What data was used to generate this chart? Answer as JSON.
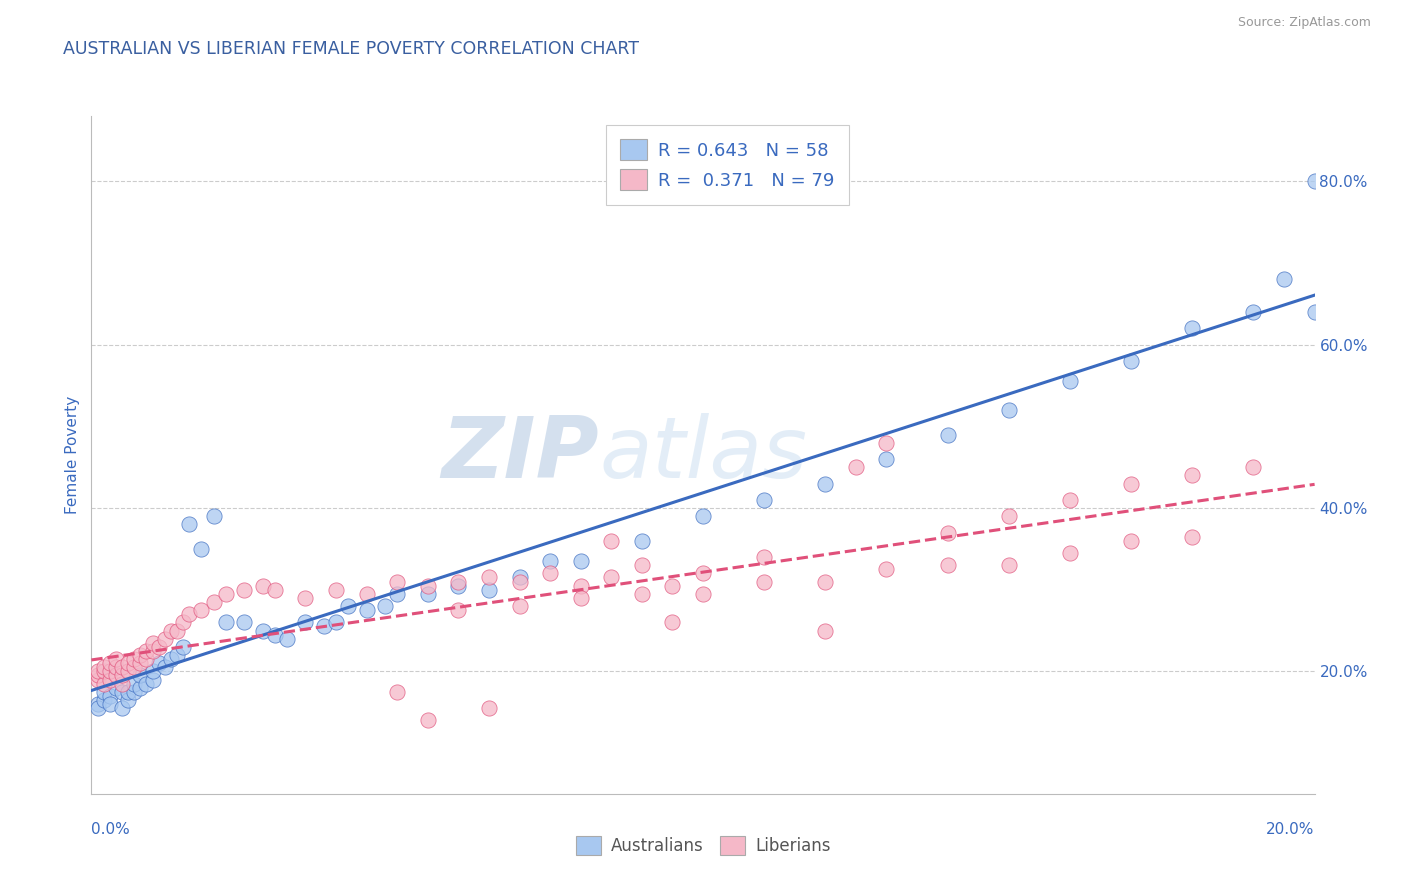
{
  "title": "AUSTRALIAN VS LIBERIAN FEMALE POVERTY CORRELATION CHART",
  "source": "Source: ZipAtlas.com",
  "ylabel": "Female Poverty",
  "watermark_zip": "ZIP",
  "watermark_atlas": "atlas",
  "legend_text1": "R = 0.643   N = 58",
  "legend_text2": "R =  0.371   N = 79",
  "color_aus": "#a8c8f0",
  "color_lib": "#f5b8c8",
  "color_line_aus": "#3a6abf",
  "color_line_lib": "#e0507a",
  "title_color": "#3a5fa0",
  "source_color": "#999999",
  "axis_label_color": "#3a6abf",
  "legend_text_color": "#3a6abf",
  "background_color": "#ffffff",
  "grid_color": "#cccccc",
  "xlim": [
    0.0,
    0.2
  ],
  "ylim": [
    0.05,
    0.88
  ],
  "y_ticks": [
    0.2,
    0.4,
    0.6,
    0.8
  ],
  "y_tick_labels": [
    "20.0%",
    "40.0%",
    "60.0%",
    "80.0%"
  ],
  "aus_scatter_x": [
    0.001,
    0.001,
    0.002,
    0.002,
    0.003,
    0.003,
    0.004,
    0.005,
    0.005,
    0.006,
    0.006,
    0.007,
    0.007,
    0.008,
    0.008,
    0.009,
    0.01,
    0.01,
    0.011,
    0.012,
    0.013,
    0.014,
    0.015,
    0.016,
    0.018,
    0.02,
    0.022,
    0.025,
    0.028,
    0.03,
    0.032,
    0.035,
    0.038,
    0.04,
    0.042,
    0.045,
    0.048,
    0.05,
    0.055,
    0.06,
    0.065,
    0.07,
    0.075,
    0.08,
    0.09,
    0.1,
    0.11,
    0.12,
    0.13,
    0.14,
    0.15,
    0.16,
    0.17,
    0.18,
    0.19,
    0.195,
    0.2,
    0.2
  ],
  "aus_scatter_y": [
    0.16,
    0.155,
    0.165,
    0.175,
    0.17,
    0.16,
    0.18,
    0.155,
    0.175,
    0.165,
    0.175,
    0.175,
    0.185,
    0.18,
    0.195,
    0.185,
    0.19,
    0.2,
    0.21,
    0.205,
    0.215,
    0.22,
    0.23,
    0.38,
    0.35,
    0.39,
    0.26,
    0.26,
    0.25,
    0.245,
    0.24,
    0.26,
    0.255,
    0.26,
    0.28,
    0.275,
    0.28,
    0.295,
    0.295,
    0.305,
    0.3,
    0.315,
    0.335,
    0.335,
    0.36,
    0.39,
    0.41,
    0.43,
    0.46,
    0.49,
    0.52,
    0.555,
    0.58,
    0.62,
    0.64,
    0.68,
    0.64,
    0.8
  ],
  "lib_scatter_x": [
    0.001,
    0.001,
    0.001,
    0.002,
    0.002,
    0.002,
    0.003,
    0.003,
    0.003,
    0.004,
    0.004,
    0.004,
    0.005,
    0.005,
    0.005,
    0.006,
    0.006,
    0.007,
    0.007,
    0.008,
    0.008,
    0.009,
    0.009,
    0.01,
    0.01,
    0.011,
    0.012,
    0.013,
    0.014,
    0.015,
    0.016,
    0.018,
    0.02,
    0.022,
    0.025,
    0.028,
    0.03,
    0.035,
    0.04,
    0.045,
    0.05,
    0.055,
    0.06,
    0.065,
    0.07,
    0.075,
    0.08,
    0.085,
    0.09,
    0.095,
    0.1,
    0.11,
    0.12,
    0.13,
    0.14,
    0.15,
    0.16,
    0.17,
    0.18,
    0.19,
    0.06,
    0.07,
    0.08,
    0.085,
    0.09,
    0.095,
    0.1,
    0.11,
    0.12,
    0.13,
    0.14,
    0.15,
    0.16,
    0.17,
    0.18,
    0.05,
    0.055,
    0.065,
    0.125
  ],
  "lib_scatter_y": [
    0.19,
    0.195,
    0.2,
    0.185,
    0.2,
    0.205,
    0.19,
    0.2,
    0.21,
    0.195,
    0.205,
    0.215,
    0.185,
    0.195,
    0.205,
    0.2,
    0.21,
    0.205,
    0.215,
    0.21,
    0.22,
    0.215,
    0.225,
    0.225,
    0.235,
    0.23,
    0.24,
    0.25,
    0.25,
    0.26,
    0.27,
    0.275,
    0.285,
    0.295,
    0.3,
    0.305,
    0.3,
    0.29,
    0.3,
    0.295,
    0.31,
    0.305,
    0.31,
    0.315,
    0.31,
    0.32,
    0.305,
    0.315,
    0.295,
    0.305,
    0.32,
    0.31,
    0.31,
    0.325,
    0.33,
    0.33,
    0.345,
    0.36,
    0.365,
    0.45,
    0.275,
    0.28,
    0.29,
    0.36,
    0.33,
    0.26,
    0.295,
    0.34,
    0.25,
    0.48,
    0.37,
    0.39,
    0.41,
    0.43,
    0.44,
    0.175,
    0.14,
    0.155,
    0.45
  ]
}
